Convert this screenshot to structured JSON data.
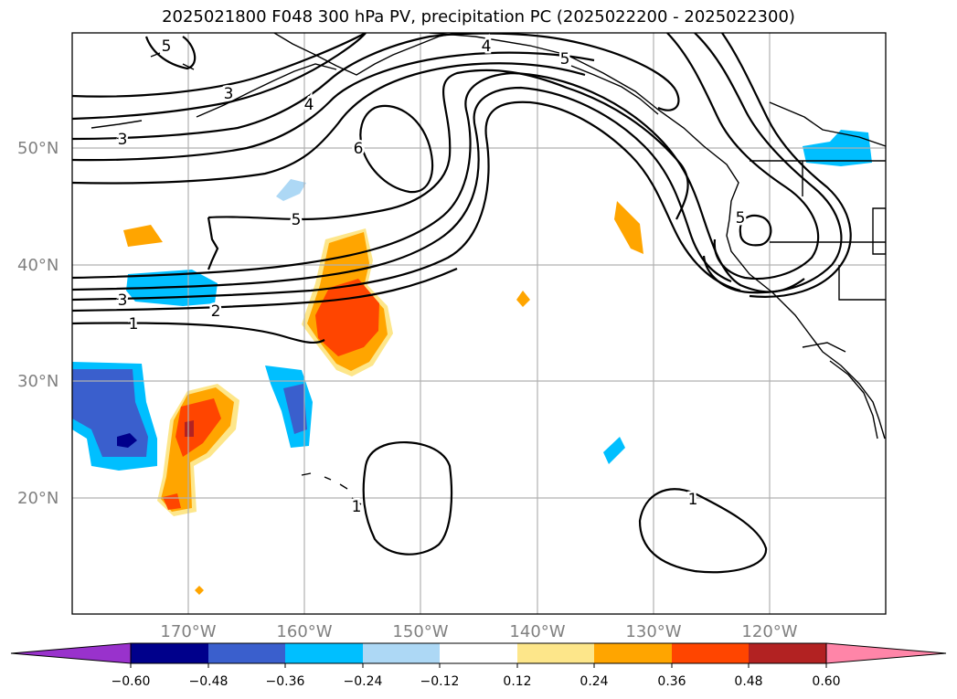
{
  "title": "2025021800 F048 300 hPa PV, precipitation PC (2025022200 - 2025022300)",
  "lat_ticks": [
    "50°N",
    "40°N",
    "30°N",
    "20°N"
  ],
  "lon_ticks": [
    "170°W",
    "160°W",
    "150°W",
    "140°W",
    "130°W",
    "120°W"
  ],
  "contour_labels": [
    "5",
    "3",
    "4",
    "6",
    "5",
    "4",
    "5",
    "3",
    "5",
    "1",
    "2",
    "3",
    "1",
    "1"
  ],
  "colorbar": {
    "ticks": [
      "−0.60",
      "−0.48",
      "−0.36",
      "−0.24",
      "−0.12",
      "0.12",
      "0.24",
      "0.36",
      "0.48",
      "0.60"
    ],
    "colors": [
      "#9932cc",
      "#00008b",
      "#3a5fcd",
      "#00bfff",
      "#add8f5",
      "#ffffff",
      "#fde68a",
      "#ffa500",
      "#ff4500",
      "#b22222",
      "#ff85a8"
    ]
  },
  "shading_colors": {
    "neg_weak": "#add8f5",
    "neg_mid": "#00bfff",
    "neg_strong": "#3a5fcd",
    "neg_max": "#00008b",
    "pos_weak": "#fde68a",
    "pos_mid": "#ffa500",
    "pos_strong": "#ff4500",
    "pos_max": "#b22222"
  }
}
